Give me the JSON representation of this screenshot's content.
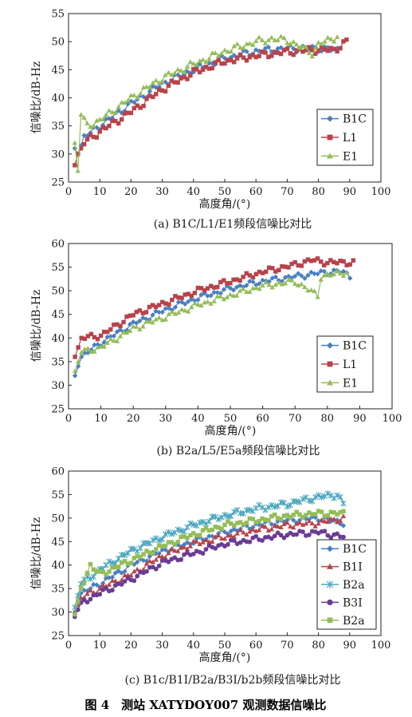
{
  "figure_caption": "图 4　测站 XATYDOY007 观测数据信噪比",
  "colors": {
    "B1C": "#4a7fc1",
    "L1": "#b8434a",
    "E1": "#94bd57",
    "B1I": "#b8434a",
    "B2a": "#4aa6bf",
    "B3I": "#6a3c95",
    "B2a_b": "#94bd57"
  },
  "chart_data": [
    {
      "type": "line",
      "caption": "(a) B1C/L1/E1频段信噪比对比",
      "xlabel": "高度角/(°)",
      "ylabel": "信噪比/dB-Hz",
      "xlim": [
        0,
        100
      ],
      "ylim": [
        25,
        55
      ],
      "xticks": [
        0,
        10,
        20,
        30,
        40,
        50,
        60,
        70,
        80,
        90,
        100
      ],
      "yticks": [
        25,
        30,
        35,
        40,
        45,
        50,
        55
      ],
      "legend_position": "bottom-right",
      "grid": false,
      "series": [
        {
          "name": "B1C",
          "marker": "diamond",
          "color": "#4a7fc1",
          "x_start": 2,
          "x_end": 86,
          "anchors": [
            [
              2,
              31
            ],
            [
              3,
              30
            ],
            [
              5,
              33
            ],
            [
              10,
              35
            ],
            [
              20,
              39
            ],
            [
              30,
              42.5
            ],
            [
              40,
              45
            ],
            [
              50,
              47
            ],
            [
              60,
              48.3
            ],
            [
              70,
              48.8
            ],
            [
              80,
              48.8
            ],
            [
              86,
              48.5
            ]
          ]
        },
        {
          "name": "L1",
          "marker": "square",
          "color": "#b8434a",
          "x_start": 2,
          "x_end": 89,
          "anchors": [
            [
              2,
              28
            ],
            [
              3,
              30
            ],
            [
              5,
              32
            ],
            [
              10,
              34
            ],
            [
              20,
              37.5
            ],
            [
              30,
              41.5
            ],
            [
              40,
              44.5
            ],
            [
              50,
              46.5
            ],
            [
              60,
              47.5
            ],
            [
              70,
              48.2
            ],
            [
              80,
              48.6
            ],
            [
              85,
              48.5
            ],
            [
              89,
              50
            ]
          ]
        },
        {
          "name": "E1",
          "marker": "triangle",
          "color": "#94bd57",
          "x_start": 2,
          "x_end": 86,
          "anchors": [
            [
              2,
              32
            ],
            [
              3,
              27
            ],
            [
              4,
              37
            ],
            [
              6,
              35
            ],
            [
              10,
              36
            ],
            [
              20,
              40
            ],
            [
              30,
              43.5
            ],
            [
              40,
              46
            ],
            [
              50,
              48.3
            ],
            [
              60,
              50
            ],
            [
              65,
              50.5
            ],
            [
              70,
              50.3
            ],
            [
              78,
              48
            ],
            [
              80,
              49.5
            ],
            [
              86,
              51
            ]
          ]
        }
      ]
    },
    {
      "type": "line",
      "caption": "(b) B2a/L5/E5a频段信噪比对比",
      "xlabel": "高度角/(°)",
      "ylabel": "信噪比/dB-Hz",
      "xlim": [
        0,
        100
      ],
      "ylim": [
        25,
        60
      ],
      "xticks": [
        0,
        10,
        20,
        30,
        40,
        50,
        60,
        70,
        80,
        90,
        100
      ],
      "yticks": [
        25,
        30,
        35,
        40,
        45,
        50,
        55,
        60
      ],
      "legend_position": "bottom-right",
      "grid": false,
      "series": [
        {
          "name": "B1C",
          "marker": "diamond",
          "color": "#4a7fc1",
          "x_start": 2,
          "x_end": 87,
          "anchors": [
            [
              2,
              32
            ],
            [
              4,
              36
            ],
            [
              10,
              39
            ],
            [
              20,
              43
            ],
            [
              30,
              46
            ],
            [
              40,
              48.5
            ],
            [
              50,
              50.5
            ],
            [
              60,
              52
            ],
            [
              70,
              53
            ],
            [
              80,
              54
            ],
            [
              85,
              54
            ],
            [
              87,
              53
            ]
          ]
        },
        {
          "name": "L1",
          "marker": "square",
          "color": "#b8434a",
          "x_start": 2,
          "x_end": 88,
          "anchors": [
            [
              2,
              36
            ],
            [
              4,
              40
            ],
            [
              10,
              40.5
            ],
            [
              20,
              45
            ],
            [
              30,
              47.5
            ],
            [
              40,
              50
            ],
            [
              50,
              52
            ],
            [
              60,
              54
            ],
            [
              70,
              55.5
            ],
            [
              75,
              56.5
            ],
            [
              80,
              56
            ],
            [
              88,
              56
            ]
          ]
        },
        {
          "name": "E1",
          "marker": "triangle",
          "color": "#94bd57",
          "x_start": 2,
          "x_end": 86,
          "anchors": [
            [
              2,
              33
            ],
            [
              4,
              37
            ],
            [
              10,
              38
            ],
            [
              20,
              42
            ],
            [
              30,
              44.5
            ],
            [
              40,
              47
            ],
            [
              50,
              49
            ],
            [
              60,
              51
            ],
            [
              70,
              52
            ],
            [
              77,
              49
            ],
            [
              78,
              53
            ],
            [
              86,
              54
            ]
          ]
        }
      ]
    },
    {
      "type": "line",
      "caption": "(c) B1c/B1I/B2a/B3I/b2b频段信噪比对比",
      "xlabel": "高度角/(°)",
      "ylabel": "信噪比/dB-Hz",
      "xlim": [
        0,
        100
      ],
      "ylim": [
        25,
        60
      ],
      "xticks": [
        0,
        10,
        20,
        30,
        40,
        50,
        60,
        70,
        80,
        90,
        100
      ],
      "yticks": [
        25,
        30,
        35,
        40,
        45,
        50,
        55,
        60
      ],
      "legend_position": "top-right",
      "grid": false,
      "series": [
        {
          "name": "B1C",
          "marker": "diamond",
          "color": "#4a7fc1",
          "x_start": 2,
          "x_end": 88,
          "anchors": [
            [
              2,
              30
            ],
            [
              4,
              34
            ],
            [
              10,
              36
            ],
            [
              20,
              40
            ],
            [
              30,
              43
            ],
            [
              40,
              45
            ],
            [
              50,
              47
            ],
            [
              60,
              48.5
            ],
            [
              70,
              49.5
            ],
            [
              80,
              50
            ],
            [
              88,
              49
            ]
          ]
        },
        {
          "name": "B1I",
          "marker": "triangle",
          "color": "#b8434a",
          "x_start": 2,
          "x_end": 88,
          "anchors": [
            [
              2,
              30
            ],
            [
              4,
              33
            ],
            [
              10,
              35
            ],
            [
              20,
              38
            ],
            [
              30,
              42
            ],
            [
              40,
              44.5
            ],
            [
              50,
              46
            ],
            [
              60,
              47.5
            ],
            [
              70,
              48.5
            ],
            [
              80,
              49
            ],
            [
              88,
              50
            ]
          ]
        },
        {
          "name": "B2a",
          "marker": "star",
          "color": "#4aa6bf",
          "x_start": 2,
          "x_end": 88,
          "anchors": [
            [
              2,
              31
            ],
            [
              4,
              36
            ],
            [
              10,
              39
            ],
            [
              20,
              43
            ],
            [
              30,
              46
            ],
            [
              40,
              48.5
            ],
            [
              50,
              50.5
            ],
            [
              60,
              52
            ],
            [
              70,
              53
            ],
            [
              80,
              54.5
            ],
            [
              86,
              55
            ],
            [
              88,
              53
            ]
          ]
        },
        {
          "name": "B3I",
          "marker": "circle",
          "color": "#6a3c95",
          "x_start": 2,
          "x_end": 88,
          "anchors": [
            [
              2,
              29
            ],
            [
              4,
              32
            ],
            [
              10,
              34
            ],
            [
              20,
              37
            ],
            [
              30,
              40.5
            ],
            [
              40,
              42.5
            ],
            [
              50,
              44.5
            ],
            [
              60,
              45.5
            ],
            [
              70,
              46.5
            ],
            [
              80,
              47
            ],
            [
              88,
              46
            ]
          ]
        },
        {
          "name": "B2a",
          "marker": "square",
          "color": "#94bd57",
          "x_start": 2,
          "x_end": 88,
          "anchors": [
            [
              2,
              29.5
            ],
            [
              4,
              35
            ],
            [
              7,
              40
            ],
            [
              10,
              38
            ],
            [
              20,
              41
            ],
            [
              30,
              44
            ],
            [
              40,
              46.5
            ],
            [
              50,
              48.5
            ],
            [
              60,
              49.5
            ],
            [
              70,
              50.5
            ],
            [
              80,
              51
            ],
            [
              88,
              51
            ]
          ]
        }
      ]
    }
  ]
}
